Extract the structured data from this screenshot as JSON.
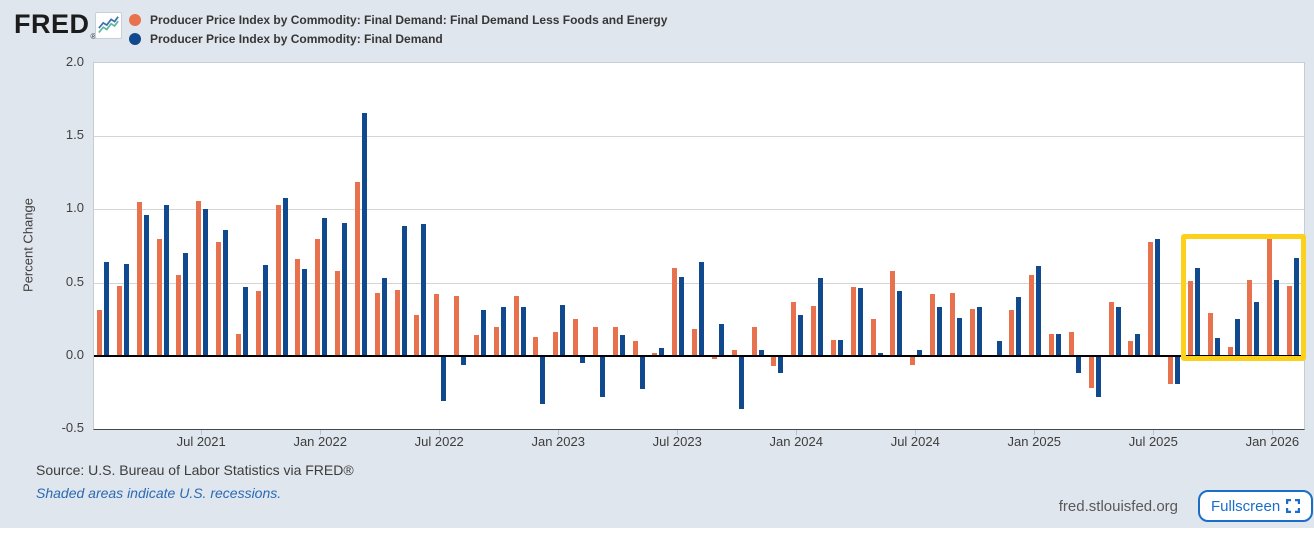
{
  "header": {
    "brand": "FRED",
    "brand_mark": "®",
    "legend": {
      "items": [
        {
          "label": "Producer Price Index by Commodity: Final Demand: Final Demand Less Foods and Energy",
          "color": "#e8714e"
        },
        {
          "label": "Producer Price Index by Commodity: Final Demand",
          "color": "#11498e"
        }
      ]
    }
  },
  "chart_data": {
    "type": "bar",
    "title": "",
    "xlabel": "",
    "ylabel": "Percent Change",
    "ylim": [
      -0.5,
      2.0
    ],
    "yticks": [
      2.0,
      1.5,
      1.0,
      0.5,
      0.0,
      -0.5
    ],
    "grid": true,
    "legend_position": "top-left",
    "categories": [
      "Feb 2021",
      "Mar 2021",
      "Apr 2021",
      "May 2021",
      "Jun 2021",
      "Jul 2021",
      "Aug 2021",
      "Sep 2021",
      "Oct 2021",
      "Nov 2021",
      "Dec 2021",
      "Jan 2022",
      "Feb 2022",
      "Mar 2022",
      "Apr 2022",
      "May 2022",
      "Jun 2022",
      "Jul 2022",
      "Aug 2022",
      "Sep 2022",
      "Oct 2022",
      "Nov 2022",
      "Dec 2022",
      "Jan 2023",
      "Feb 2023",
      "Mar 2023",
      "Apr 2023",
      "May 2023",
      "Jun 2023",
      "Jul 2023",
      "Aug 2023",
      "Sep 2023",
      "Oct 2023",
      "Nov 2023",
      "Dec 2023",
      "Jan 2024",
      "Feb 2024",
      "Mar 2024",
      "Apr 2024",
      "May 2024",
      "Jun 2024",
      "Jul 2024",
      "Aug 2024",
      "Sep 2024",
      "Oct 2024",
      "Nov 2024",
      "Dec 2024",
      "Jan 2025",
      "Feb 2025",
      "Mar 2025",
      "Apr 2025",
      "May 2025",
      "Jun 2025",
      "Jul 2025",
      "Aug 2025",
      "Sep 2025",
      "Oct 2025",
      "Nov 2025",
      "Dec 2025",
      "Jan 2026",
      "Feb 2026"
    ],
    "xtick_labels": [
      "Jul 2021",
      "Jan 2022",
      "Jul 2022",
      "Jan 2023",
      "Jul 2023",
      "Jan 2024",
      "Jul 2024",
      "Jan 2025",
      "Jul 2025",
      "Jan 2026"
    ],
    "series": [
      {
        "name": "Producer Price Index by Commodity: Final Demand: Final Demand Less Foods and Energy",
        "color": "#e8714e",
        "values": [
          0.31,
          0.48,
          1.05,
          0.8,
          0.55,
          1.06,
          0.78,
          0.15,
          0.44,
          1.03,
          0.66,
          0.8,
          0.58,
          1.19,
          0.43,
          0.45,
          0.28,
          0.42,
          0.41,
          0.14,
          0.2,
          0.41,
          0.13,
          0.16,
          0.25,
          0.2,
          0.2,
          0.1,
          0.02,
          0.6,
          0.18,
          -0.02,
          0.04,
          0.2,
          -0.07,
          0.37,
          0.34,
          0.11,
          0.47,
          0.25,
          0.58,
          -0.06,
          0.42,
          0.43,
          0.32,
          -0.01,
          0.31,
          0.55,
          0.15,
          0.16,
          -0.22,
          0.37,
          0.1,
          0.78,
          -0.19,
          0.51,
          0.29,
          0.06,
          0.52,
          0.8,
          0.48
        ]
      },
      {
        "name": "Producer Price Index by Commodity: Final Demand",
        "color": "#11498e",
        "values": [
          0.64,
          0.63,
          0.96,
          1.03,
          0.7,
          1.0,
          0.86,
          0.47,
          0.62,
          1.08,
          0.59,
          0.94,
          0.91,
          1.66,
          0.53,
          0.89,
          0.9,
          -0.31,
          -0.06,
          0.31,
          0.33,
          0.33,
          -0.33,
          0.35,
          -0.05,
          -0.28,
          0.14,
          -0.23,
          0.05,
          0.54,
          0.64,
          0.22,
          -0.36,
          0.04,
          -0.12,
          0.28,
          0.53,
          0.11,
          0.46,
          0.02,
          0.44,
          0.04,
          0.33,
          0.26,
          0.33,
          0.1,
          0.4,
          0.61,
          0.15,
          -0.12,
          -0.28,
          0.33,
          0.15,
          0.8,
          -0.19,
          0.6,
          0.12,
          0.25,
          0.37,
          0.52,
          0.67
        ]
      }
    ],
    "highlight_box": {
      "from_month": "Sep 2025",
      "to_month": "Feb 2026",
      "value_top": 0.825,
      "value_bottom": -0.045,
      "color": "#fcd11c"
    }
  },
  "footer": {
    "source": "Source: U.S. Bureau of Labor Statistics via FRED®",
    "recession_note": "Shaded areas indicate U.S. recessions.",
    "site_url": "fred.stlouisfed.org",
    "fullscreen_label": "Fullscreen"
  }
}
